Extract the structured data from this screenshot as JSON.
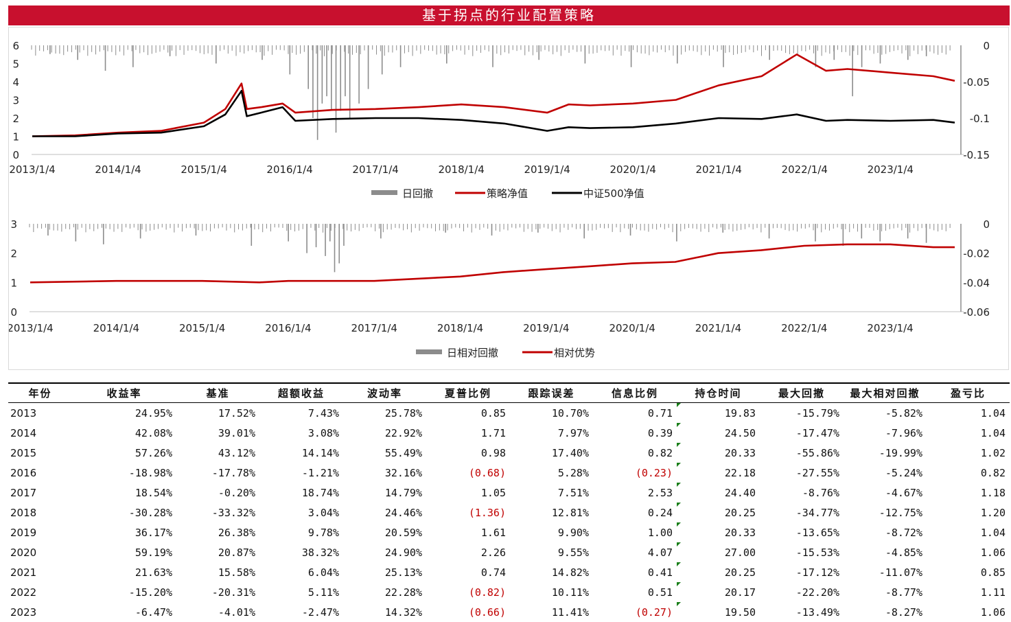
{
  "title": "基于拐点的行业配置策略",
  "top_chart": {
    "left_ticks": [
      "0",
      "1",
      "2",
      "3",
      "4",
      "5",
      "6"
    ],
    "right_ticks": [
      "0",
      "-0.05",
      "-0.1",
      "-0.15"
    ],
    "x_ticks": [
      "2013/1/4",
      "2014/1/4",
      "2015/1/4",
      "2016/1/4",
      "2017/1/4",
      "2018/1/4",
      "2019/1/4",
      "2020/1/4",
      "2021/1/4",
      "2022/1/4",
      "2023/1/4"
    ],
    "legend": [
      "日回撤",
      "策略净值",
      "中证500净值"
    ]
  },
  "bottom_chart": {
    "left_ticks": [
      "0",
      "1",
      "2",
      "3"
    ],
    "right_ticks": [
      "0",
      "-0.02",
      "-0.04",
      "-0.06"
    ],
    "x_ticks": [
      "2013/1/4",
      "2014/1/4",
      "2015/1/4",
      "2016/1/4",
      "2017/1/4",
      "2018/1/4",
      "2019/1/4",
      "2020/1/4",
      "2021/1/4",
      "2022/1/4",
      "2023/1/4"
    ],
    "legend": [
      "日相对回撤",
      "相对优势"
    ]
  },
  "colors": {
    "strategy": "#c00000",
    "benchmark": "#000000",
    "drawdown": "#8c8c8c",
    "title_bg": "#c8102e"
  },
  "chart_data": [
    {
      "type": "line",
      "title": "",
      "ylim": [
        0,
        6
      ],
      "y2lim": [
        -0.15,
        0
      ],
      "x": [
        "2013/1/4",
        "2013/7/4",
        "2014/1/4",
        "2014/7/4",
        "2015/1/4",
        "2015/4/4",
        "2015/6/12",
        "2015/7/4",
        "2015/9/4",
        "2015/12/4",
        "2016/1/28",
        "2016/7/4",
        "2017/1/4",
        "2017/7/4",
        "2018/1/4",
        "2018/7/4",
        "2019/1/4",
        "2019/4/4",
        "2019/7/4",
        "2020/1/4",
        "2020/7/4",
        "2021/1/4",
        "2021/7/4",
        "2021/12/1",
        "2022/4/4",
        "2022/7/4",
        "2023/1/4",
        "2023/7/4",
        "2023/10/4"
      ],
      "series": [
        {
          "name": "策略净值",
          "values": [
            1.0,
            1.05,
            1.2,
            1.3,
            1.75,
            2.5,
            3.9,
            2.5,
            2.6,
            2.8,
            2.3,
            2.45,
            2.5,
            2.6,
            2.75,
            2.6,
            2.3,
            2.75,
            2.7,
            2.8,
            3.0,
            3.8,
            4.3,
            5.5,
            4.6,
            4.7,
            4.5,
            4.3,
            4.05
          ]
        },
        {
          "name": "中证500净值",
          "values": [
            1.0,
            1.0,
            1.15,
            1.2,
            1.55,
            2.2,
            3.5,
            2.1,
            2.3,
            2.6,
            1.85,
            1.95,
            2.0,
            2.0,
            1.9,
            1.7,
            1.3,
            1.5,
            1.45,
            1.5,
            1.7,
            2.0,
            1.95,
            2.2,
            1.85,
            1.9,
            1.85,
            1.9,
            1.75
          ]
        }
      ],
      "drawdown_series": {
        "name": "日回撤",
        "note_values_are_negative": true,
        "spikes": [
          [
            0.02,
            -0.012
          ],
          [
            0.05,
            -0.02
          ],
          [
            0.08,
            -0.035
          ],
          [
            0.11,
            -0.03
          ],
          [
            0.15,
            -0.015
          ],
          [
            0.2,
            -0.025
          ],
          [
            0.25,
            -0.02
          ],
          [
            0.28,
            -0.04
          ],
          [
            0.3,
            -0.06
          ],
          [
            0.305,
            -0.1
          ],
          [
            0.31,
            -0.13
          ],
          [
            0.315,
            -0.08
          ],
          [
            0.32,
            -0.07
          ],
          [
            0.325,
            -0.09
          ],
          [
            0.33,
            -0.12
          ],
          [
            0.335,
            -0.09
          ],
          [
            0.34,
            -0.07
          ],
          [
            0.345,
            -0.1
          ],
          [
            0.355,
            -0.08
          ],
          [
            0.365,
            -0.06
          ],
          [
            0.38,
            -0.04
          ],
          [
            0.4,
            -0.03
          ],
          [
            0.45,
            -0.025
          ],
          [
            0.5,
            -0.03
          ],
          [
            0.55,
            -0.02
          ],
          [
            0.6,
            -0.025
          ],
          [
            0.65,
            -0.03
          ],
          [
            0.7,
            -0.025
          ],
          [
            0.75,
            -0.03
          ],
          [
            0.8,
            -0.02
          ],
          [
            0.85,
            -0.03
          ],
          [
            0.87,
            -0.02
          ],
          [
            0.89,
            -0.07
          ],
          [
            0.9,
            -0.03
          ],
          [
            0.92,
            -0.025
          ],
          [
            0.95,
            -0.02
          ],
          [
            0.97,
            -0.015
          ]
        ]
      }
    },
    {
      "type": "line",
      "title": "",
      "ylim": [
        0,
        3
      ],
      "y2lim": [
        -0.06,
        0
      ],
      "x": [
        "2013/1/4",
        "2014/1/4",
        "2015/1/4",
        "2015/9/4",
        "2016/1/4",
        "2017/1/4",
        "2018/1/4",
        "2018/7/4",
        "2019/1/4",
        "2019/7/4",
        "2020/1/4",
        "2020/7/4",
        "2021/1/4",
        "2021/7/4",
        "2022/1/4",
        "2022/7/4",
        "2023/1/4",
        "2023/7/4",
        "2023/10/4"
      ],
      "series": [
        {
          "name": "相对优势",
          "values": [
            1.0,
            1.05,
            1.05,
            1.0,
            1.05,
            1.05,
            1.2,
            1.35,
            1.45,
            1.55,
            1.65,
            1.7,
            2.0,
            2.1,
            2.25,
            2.3,
            2.3,
            2.2,
            2.2
          ]
        }
      ],
      "drawdown_series": {
        "name": "日相对回撤",
        "spikes": [
          [
            0.02,
            -0.008
          ],
          [
            0.05,
            -0.012
          ],
          [
            0.08,
            -0.014
          ],
          [
            0.12,
            -0.01
          ],
          [
            0.18,
            -0.008
          ],
          [
            0.24,
            -0.015
          ],
          [
            0.28,
            -0.012
          ],
          [
            0.3,
            -0.02
          ],
          [
            0.31,
            -0.016
          ],
          [
            0.32,
            -0.022
          ],
          [
            0.325,
            -0.012
          ],
          [
            0.33,
            -0.033
          ],
          [
            0.335,
            -0.027
          ],
          [
            0.34,
            -0.015
          ],
          [
            0.38,
            -0.01
          ],
          [
            0.45,
            -0.006
          ],
          [
            0.5,
            -0.008
          ],
          [
            0.55,
            -0.006
          ],
          [
            0.6,
            -0.01
          ],
          [
            0.65,
            -0.008
          ],
          [
            0.7,
            -0.012
          ],
          [
            0.75,
            -0.006
          ],
          [
            0.8,
            -0.01
          ],
          [
            0.85,
            -0.012
          ],
          [
            0.88,
            -0.015
          ],
          [
            0.9,
            -0.01
          ],
          [
            0.92,
            -0.012
          ],
          [
            0.95,
            -0.01
          ],
          [
            0.97,
            -0.013
          ]
        ]
      }
    }
  ],
  "table": {
    "headers": [
      "年份",
      "收益率",
      "基准",
      "超额收益",
      "波动率",
      "夏普比例",
      "跟踪误差",
      "信息比例",
      "持仓时间",
      "最大回撤",
      "最大相对回撤",
      "盈亏比"
    ],
    "rows": [
      [
        "2013",
        "24.95%",
        "17.52%",
        "7.43%",
        "25.78%",
        "0.85",
        "10.70%",
        "0.71",
        "19.83",
        "-15.79%",
        "-5.82%",
        "1.04"
      ],
      [
        "2014",
        "42.08%",
        "39.01%",
        "3.08%",
        "22.92%",
        "1.71",
        "7.97%",
        "0.39",
        "24.50",
        "-17.47%",
        "-7.96%",
        "1.04"
      ],
      [
        "2015",
        "57.26%",
        "43.12%",
        "14.14%",
        "55.49%",
        "0.98",
        "17.40%",
        "0.82",
        "20.33",
        "-55.86%",
        "-19.99%",
        "1.02"
      ],
      [
        "2016",
        "-18.98%",
        "-17.78%",
        "-1.21%",
        "32.16%",
        "(0.68)",
        "5.28%",
        "(0.23)",
        "22.18",
        "-27.55%",
        "-5.24%",
        "0.82"
      ],
      [
        "2017",
        "18.54%",
        "-0.20%",
        "18.74%",
        "14.79%",
        "1.05",
        "7.51%",
        "2.53",
        "24.40",
        "-8.76%",
        "-4.67%",
        "1.18"
      ],
      [
        "2018",
        "-30.28%",
        "-33.32%",
        "3.04%",
        "24.46%",
        "(1.36)",
        "12.81%",
        "0.24",
        "20.25",
        "-34.77%",
        "-12.75%",
        "1.20"
      ],
      [
        "2019",
        "36.17%",
        "26.38%",
        "9.78%",
        "20.59%",
        "1.61",
        "9.90%",
        "1.00",
        "20.33",
        "-13.65%",
        "-8.72%",
        "1.04"
      ],
      [
        "2020",
        "59.19%",
        "20.87%",
        "38.32%",
        "24.90%",
        "2.26",
        "9.55%",
        "4.07",
        "27.00",
        "-15.53%",
        "-4.85%",
        "1.06"
      ],
      [
        "2021",
        "21.63%",
        "15.58%",
        "6.04%",
        "25.13%",
        "0.74",
        "14.82%",
        "0.41",
        "20.25",
        "-17.12%",
        "-11.07%",
        "0.85"
      ],
      [
        "2022",
        "-15.20%",
        "-20.31%",
        "5.11%",
        "22.28%",
        "(0.82)",
        "10.11%",
        "0.51",
        "20.17",
        "-22.20%",
        "-8.77%",
        "1.11"
      ],
      [
        "2023",
        "-6.47%",
        "-4.01%",
        "-2.47%",
        "14.32%",
        "(0.66)",
        "11.41%",
        "(0.27)",
        "19.50",
        "-13.49%",
        "-8.27%",
        "1.06"
      ]
    ]
  }
}
